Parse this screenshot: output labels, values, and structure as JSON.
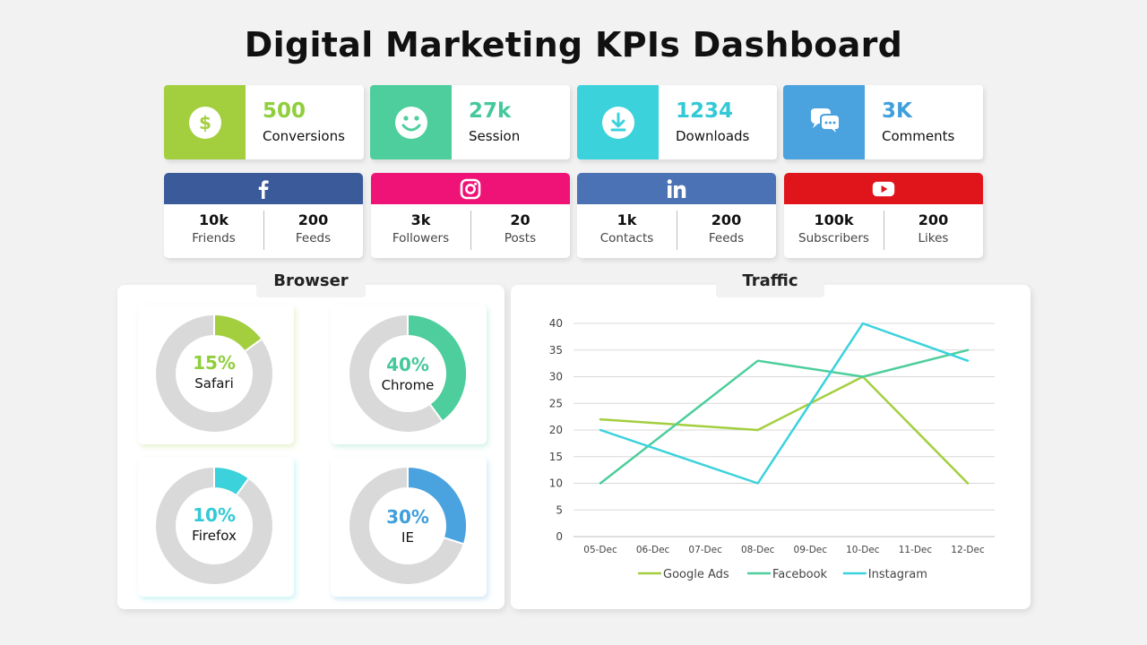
{
  "title": "Digital Marketing KPIs Dashboard",
  "kpis": [
    {
      "value": "500",
      "label": "Conversions",
      "color": "#8fce3c",
      "bg": "#a3cf3f",
      "icon": "dollar-icon"
    },
    {
      "value": "27k",
      "label": "Session",
      "color": "#45c89a",
      "bg": "#4dce9c",
      "icon": "smiley-icon"
    },
    {
      "value": "1234",
      "label": "Downloads",
      "color": "#33c9d6",
      "bg": "#3bd2dc",
      "icon": "download-icon"
    },
    {
      "value": "3K",
      "label": "Comments",
      "color": "#3f9fdc",
      "bg": "#4aa3df",
      "icon": "comments-icon"
    }
  ],
  "social": [
    {
      "network": "facebook",
      "color": "#3b5a9a",
      "icon": "facebook-icon",
      "a_value": "10k",
      "a_label": "Friends",
      "b_value": "200",
      "b_label": "Feeds"
    },
    {
      "network": "instagram",
      "color": "#ef1377",
      "icon": "instagram-icon",
      "a_value": "3k",
      "a_label": "Followers",
      "b_value": "20",
      "b_label": "Posts"
    },
    {
      "network": "linkedin",
      "color": "#4a72b4",
      "icon": "linkedin-icon",
      "a_value": "1k",
      "a_label": "Contacts",
      "b_value": "200",
      "b_label": "Feeds"
    },
    {
      "network": "youtube",
      "color": "#e0141b",
      "icon": "youtube-icon",
      "a_value": "100k",
      "a_label": "Subscribers",
      "b_value": "200",
      "b_label": "Likes"
    }
  ],
  "browser": {
    "title": "Browser",
    "items": [
      {
        "name": "Safari",
        "pct_label": "15%",
        "value": 15,
        "color": "#a3cf3f"
      },
      {
        "name": "Chrome",
        "pct_label": "40%",
        "value": 40,
        "color": "#4dce9c"
      },
      {
        "name": "Firefox",
        "pct_label": "10%",
        "value": 10,
        "color": "#3bd2dc"
      },
      {
        "name": "IE",
        "pct_label": "30%",
        "value": 30,
        "color": "#4aa3df"
      }
    ],
    "track_color": "#d9d9d9"
  },
  "traffic": {
    "title": "Traffic"
  },
  "chart_data": {
    "type": "line",
    "title": "Traffic",
    "x": [
      "05-Dec",
      "06-Dec",
      "07-Dec",
      "08-Dec",
      "09-Dec",
      "10-Dec",
      "11-Dec",
      "12-Dec"
    ],
    "series": [
      {
        "name": "Google Ads",
        "color": "#a3cf3f",
        "points": [
          [
            0,
            22
          ],
          [
            3,
            20
          ],
          [
            5,
            30
          ],
          [
            7,
            10
          ]
        ]
      },
      {
        "name": "Facebook",
        "color": "#4dce9c",
        "points": [
          [
            0,
            10
          ],
          [
            3,
            33
          ],
          [
            5,
            30
          ],
          [
            7,
            35
          ]
        ]
      },
      {
        "name": "Instagram",
        "color": "#3bd2dc",
        "points": [
          [
            0,
            20
          ],
          [
            3,
            10
          ],
          [
            5,
            40
          ],
          [
            7,
            33
          ]
        ]
      }
    ],
    "yticks": [
      0,
      5,
      10,
      15,
      20,
      25,
      30,
      35,
      40
    ],
    "ylim": [
      0,
      40
    ],
    "grid": true,
    "legend": "bottom"
  }
}
